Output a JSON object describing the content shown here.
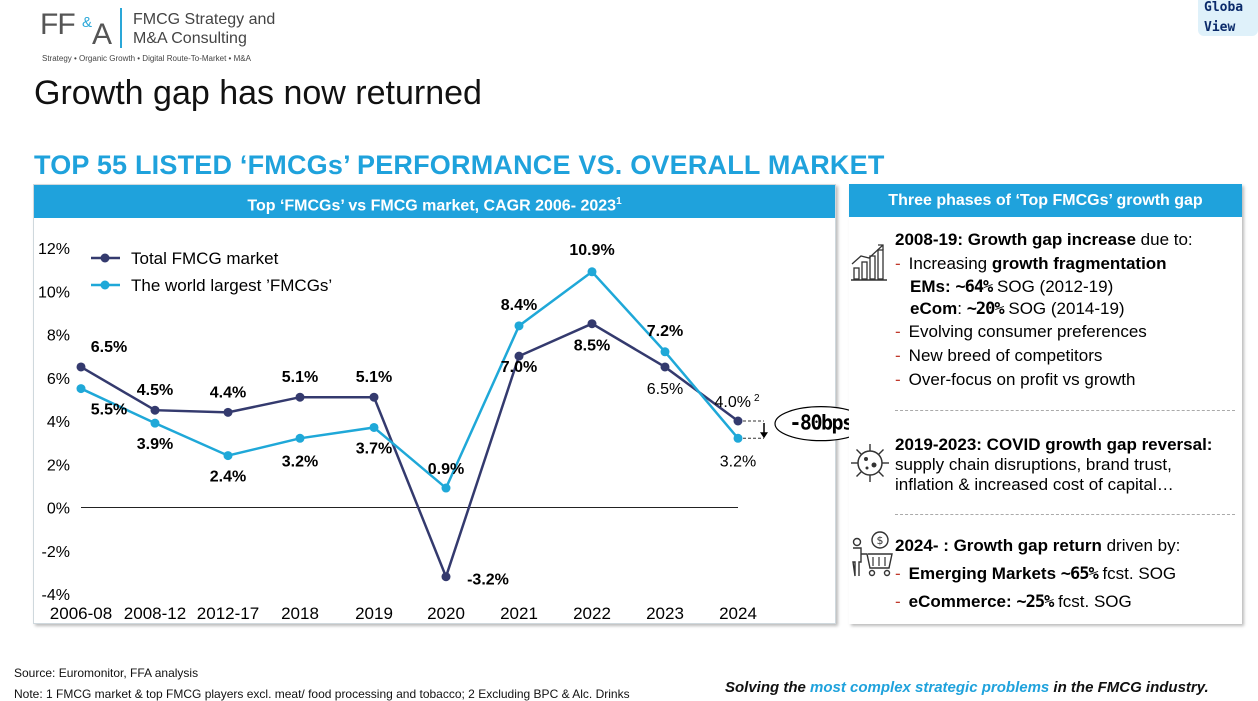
{
  "logo": {
    "ff": "FF",
    "amp": "&",
    "a": "A",
    "company": "FMCG Strategy and M&A Consulting",
    "tagline": "Strategy • Organic Growth • Digital Route-To-Market • M&A"
  },
  "global_view": {
    "line1": "Globa",
    "line2": "View"
  },
  "title": "Growth gap has now returned",
  "section_heading": "TOP 55 LISTED ‘FMCGs’ PERFORMANCE VS. OVERALL MARKET",
  "chart_panel": {
    "header": "Top ‘FMCGs’ vs FMCG market, CAGR 2006- 2023",
    "header_sup": "1"
  },
  "chart_data": {
    "type": "line",
    "categories": [
      "2006-08",
      "2008-12",
      "2012-17",
      "2018",
      "2019",
      "2020",
      "2021",
      "2022",
      "2023",
      "2024"
    ],
    "ylim": [
      -4,
      12
    ],
    "yticks": [
      "-4%",
      "-2%",
      "0%",
      "2%",
      "4%",
      "6%",
      "8%",
      "10%",
      "12%"
    ],
    "series": [
      {
        "name": "Total FMCG market",
        "color": "#343a6e",
        "values": [
          6.5,
          4.5,
          4.4,
          5.1,
          5.1,
          -3.2,
          7.0,
          8.5,
          6.5,
          4.0
        ],
        "labels": [
          "6.5%",
          "4.5%",
          "4.4%",
          "5.1%",
          "5.1%",
          "-3.2%",
          "7.0%",
          "8.5%",
          "6.5%",
          "4.0%"
        ]
      },
      {
        "name": "The world largest ’FMCGs’",
        "color": "#1fa8d8",
        "values": [
          5.5,
          3.9,
          2.4,
          3.2,
          3.7,
          0.9,
          8.4,
          10.9,
          7.2,
          3.2
        ],
        "labels": [
          "5.5%",
          "3.9%",
          "2.4%",
          "3.2%",
          "3.7%",
          "0.9%",
          "8.4%",
          "10.9%",
          "7.2%",
          "3.2%"
        ]
      }
    ],
    "last_label_sup": "2",
    "gap_annotation": "-80bps",
    "legend": "top-left"
  },
  "phases_panel": {
    "header": "Three phases of ‘Top FMCGs’ growth gap",
    "phase1": {
      "title_bold": "2008-19: Growth gap increase",
      "title_rest": " due to:",
      "b1_pre": "Increasing ",
      "b1_bold": "growth fragmentation",
      "ems_label": "EMs: ",
      "ems_value": "~64%",
      "ems_rest": " SOG (2012-19)",
      "ecom_label": "eCom",
      "ecom_colon": ": ",
      "ecom_value": "~20%",
      "ecom_rest": " SOG (2014-19)",
      "b2": "Evolving consumer preferences",
      "b3": "New breed of competitors",
      "b4": "Over-focus on profit vs growth"
    },
    "phase2": {
      "title_bold": "2019-2023: COVID growth gap reversal:",
      "line2": "supply chain disruptions, brand trust,",
      "line3": "inflation & increased cost of capital…"
    },
    "phase3": {
      "title_bold": "2024- : Growth gap return",
      "title_rest": " driven by:",
      "b1_bold": "Emerging Markets ",
      "b1_value": "~65%",
      "b1_rest": " fcst. SOG",
      "b2_bold": "eCommerce: ",
      "b2_value": "~25%",
      "b2_rest": " fcst. SOG"
    }
  },
  "footer": {
    "source": "Source: Euromonitor, FFA analysis",
    "note": "Note: 1 FMCG market & top FMCG players excl. meat/ food processing and tobacco; 2 Excluding BPC & Alc. Drinks",
    "tagline_pre": "Solving the ",
    "tagline_hl": "most complex strategic problems",
    "tagline_post": " in the FMCG industry."
  },
  "colors": {
    "accent": "#1fa2dc",
    "market_line": "#343a6e",
    "fmcg_line": "#1fa8d8"
  }
}
